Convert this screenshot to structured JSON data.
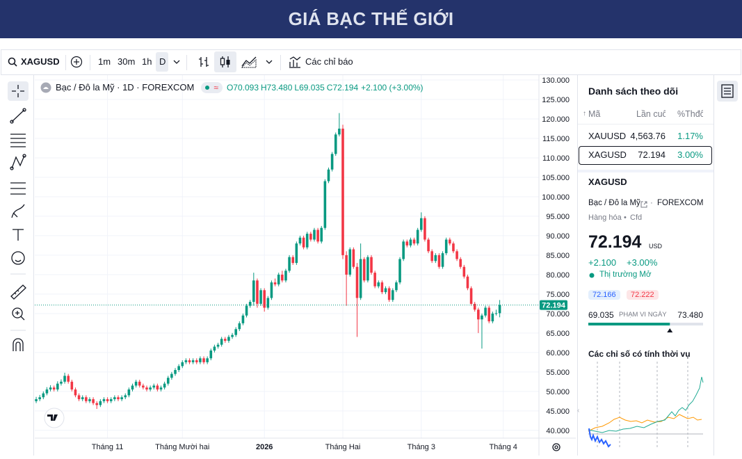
{
  "header": {
    "title": "GIÁ BẠC THẾ GIỚI"
  },
  "toolbar": {
    "symbol": "XAGUSD",
    "intervals": [
      "1m",
      "30m",
      "1h",
      "D"
    ],
    "indicators": "Các chỉ báo"
  },
  "chart_data": {
    "type": "candlestick",
    "title": "Bạc / Đô la Mỹ · 1D · FOREXCOM",
    "legend": {
      "open": "O70.093",
      "high": "H73.480",
      "low": "L69.035",
      "close": "C72.194",
      "change": "+2.100 (+3.00%)"
    },
    "up_color": "#089981",
    "down_color": "#f23645",
    "grid": true,
    "x": [
      0,
      1,
      2,
      3,
      4,
      5,
      6,
      7,
      8,
      9,
      10,
      11,
      12,
      13,
      14,
      15,
      16,
      17,
      18,
      19,
      20,
      21,
      22,
      23,
      24,
      25,
      26,
      27,
      28,
      29,
      30,
      31,
      32,
      33,
      34,
      35,
      36,
      37,
      38,
      39,
      40,
      41,
      42,
      43,
      44,
      45,
      46,
      47,
      48,
      49,
      50,
      51,
      52,
      53,
      54,
      55,
      56,
      57,
      58,
      59,
      60,
      61,
      62,
      63,
      64,
      65,
      66,
      67,
      68,
      69,
      70,
      71,
      72,
      73,
      74,
      75,
      76,
      77,
      78,
      79,
      80,
      81,
      82,
      83,
      84,
      85,
      86,
      87,
      88,
      89,
      90,
      91,
      92,
      93,
      94,
      95,
      96,
      97,
      98,
      99,
      100,
      101,
      102,
      103,
      104,
      105,
      106,
      107,
      108,
      109,
      110,
      111,
      112,
      113,
      114,
      115,
      116,
      117,
      118,
      119,
      120,
      121,
      122,
      123,
      124,
      125,
      126,
      127,
      128,
      129,
      130
    ],
    "open": [
      47.5,
      48.0,
      48.5,
      49.5,
      50.5,
      51.0,
      50.5,
      52.0,
      52.5,
      54.0,
      52.5,
      50.5,
      49.0,
      48.0,
      48.5,
      47.5,
      48.0,
      47.0,
      46.5,
      47.5,
      48.0,
      47.5,
      48.0,
      48.5,
      48.0,
      48.5,
      49.0,
      50.5,
      51.5,
      52.5,
      51.5,
      51.0,
      50.5,
      51.0,
      51.5,
      50.5,
      51.0,
      52.0,
      53.5,
      54.5,
      55.5,
      56.5,
      57.5,
      58.0,
      57.5,
      58.0,
      57.5,
      58.5,
      57.5,
      58.5,
      60.5,
      61.5,
      62.0,
      63.5,
      63.0,
      64.0,
      64.5,
      66.0,
      67.5,
      69.5,
      72.0,
      73.0,
      78.5,
      72.5,
      76.0,
      71.5,
      74.0,
      78.0,
      77.5,
      80.0,
      78.5,
      81.0,
      84.5,
      83.0,
      88.0,
      89.5,
      87.0,
      90.5,
      89.0,
      91.5,
      88.5,
      92.0,
      104.0,
      107.0,
      111.0,
      116.0,
      117.5,
      85.0,
      80.0,
      86.5,
      82.0,
      74.0,
      84.0,
      78.5,
      84.5,
      80.5,
      77.0,
      78.0,
      75.5,
      76.5,
      73.5,
      76.0,
      78.0,
      84.0,
      88.5,
      87.5,
      89.0,
      88.0,
      91.5,
      94.5,
      89.0,
      86.0,
      83.5,
      85.0,
      82.0,
      85.5,
      89.0,
      88.0,
      86.0,
      84.0,
      82.0,
      79.5,
      76.5,
      72.5,
      71.0,
      68.5,
      69.5,
      71.5,
      68.0,
      70.0,
      70.093
    ],
    "high": [
      48.6,
      49.1,
      50.0,
      51.1,
      51.6,
      51.5,
      52.6,
      53.1,
      54.8,
      54.5,
      53.0,
      51.0,
      49.5,
      49.0,
      49.0,
      48.5,
      48.5,
      47.5,
      48.0,
      48.5,
      48.5,
      48.5,
      49.0,
      49.0,
      49.0,
      49.5,
      51.0,
      52.0,
      53.0,
      53.0,
      52.0,
      51.5,
      51.5,
      52.0,
      52.0,
      51.5,
      52.5,
      54.0,
      55.0,
      56.0,
      57.0,
      58.0,
      58.5,
      58.5,
      58.5,
      58.5,
      59.0,
      59.0,
      59.0,
      61.0,
      62.0,
      62.5,
      64.0,
      64.0,
      64.5,
      65.0,
      66.5,
      68.0,
      70.0,
      72.5,
      73.5,
      80.5,
      79.0,
      76.5,
      76.5,
      74.5,
      78.5,
      79.0,
      80.5,
      81.0,
      81.5,
      85.0,
      85.0,
      88.5,
      90.0,
      90.0,
      91.0,
      91.0,
      92.0,
      92.0,
      92.5,
      104.5,
      107.5,
      111.5,
      116.5,
      121.5,
      118.5,
      86.0,
      87.0,
      87.0,
      83.0,
      88.0,
      84.5,
      85.0,
      85.0,
      81.0,
      78.5,
      78.5,
      77.0,
      77.0,
      76.5,
      78.5,
      84.5,
      89.0,
      89.0,
      89.5,
      89.5,
      92.0,
      96.0,
      95.0,
      89.5,
      86.5,
      85.5,
      85.5,
      86.0,
      89.5,
      89.5,
      88.5,
      86.5,
      84.5,
      82.5,
      80.0,
      77.0,
      73.0,
      71.5,
      70.0,
      72.0,
      72.0,
      70.5,
      71.0,
      73.48
    ],
    "low": [
      47.0,
      47.5,
      48.0,
      49.0,
      50.0,
      50.0,
      50.0,
      51.5,
      52.0,
      52.0,
      50.0,
      48.5,
      47.5,
      47.5,
      47.0,
      47.0,
      46.5,
      45.5,
      46.0,
      47.0,
      47.0,
      47.0,
      47.5,
      47.5,
      47.5,
      48.0,
      48.5,
      50.0,
      51.0,
      51.0,
      50.5,
      50.0,
      50.0,
      50.5,
      50.0,
      50.0,
      50.5,
      51.5,
      53.0,
      54.0,
      55.0,
      56.0,
      57.0,
      57.0,
      57.0,
      57.0,
      57.0,
      57.0,
      57.0,
      58.0,
      60.0,
      61.0,
      61.5,
      62.5,
      62.5,
      63.5,
      64.0,
      65.5,
      67.0,
      69.0,
      71.5,
      72.0,
      71.5,
      72.0,
      70.5,
      71.0,
      73.5,
      77.0,
      77.0,
      78.0,
      78.0,
      80.5,
      82.5,
      82.5,
      87.5,
      86.5,
      86.5,
      88.5,
      88.5,
      88.0,
      88.0,
      91.5,
      103.5,
      106.5,
      110.5,
      115.5,
      84.0,
      72.0,
      79.5,
      81.5,
      64.0,
      73.5,
      78.0,
      78.0,
      80.0,
      76.5,
      76.5,
      75.0,
      75.0,
      73.0,
      73.0,
      75.5,
      77.5,
      83.5,
      87.0,
      87.0,
      87.5,
      87.5,
      91.0,
      88.5,
      85.5,
      83.0,
      83.0,
      81.5,
      81.5,
      85.0,
      87.5,
      85.5,
      83.5,
      81.5,
      79.0,
      76.0,
      72.0,
      70.5,
      65.0,
      61.0,
      69.0,
      67.5,
      67.5,
      69.5,
      69.035
    ],
    "close": [
      48.0,
      48.5,
      49.5,
      50.5,
      51.0,
      50.5,
      52.0,
      52.5,
      54.0,
      52.5,
      50.5,
      49.0,
      48.0,
      48.5,
      47.5,
      48.0,
      47.0,
      46.5,
      47.5,
      48.0,
      47.5,
      48.0,
      48.5,
      48.0,
      48.5,
      49.0,
      50.5,
      51.5,
      52.5,
      51.5,
      51.0,
      50.5,
      51.0,
      51.5,
      50.5,
      51.0,
      52.0,
      53.5,
      54.5,
      55.5,
      56.5,
      57.5,
      58.0,
      57.5,
      58.0,
      57.5,
      58.5,
      57.5,
      58.5,
      60.5,
      61.5,
      62.0,
      63.5,
      63.0,
      64.0,
      64.5,
      66.0,
      67.5,
      69.5,
      72.0,
      73.0,
      78.5,
      72.5,
      76.0,
      71.5,
      74.0,
      78.0,
      77.5,
      80.0,
      78.5,
      81.0,
      84.5,
      83.0,
      88.0,
      89.5,
      87.0,
      90.5,
      89.0,
      91.5,
      88.5,
      92.0,
      104.0,
      107.0,
      111.0,
      116.0,
      117.5,
      85.0,
      80.0,
      86.5,
      82.0,
      74.0,
      84.0,
      78.5,
      84.5,
      80.5,
      77.0,
      78.0,
      75.5,
      76.5,
      73.5,
      76.0,
      78.0,
      84.0,
      88.5,
      87.5,
      89.0,
      88.0,
      91.5,
      94.5,
      89.0,
      86.0,
      83.5,
      85.0,
      82.0,
      85.5,
      89.0,
      88.0,
      86.0,
      84.0,
      82.0,
      79.5,
      76.5,
      72.5,
      71.0,
      68.5,
      69.5,
      71.5,
      68.0,
      70.0,
      70.1,
      72.194
    ],
    "xlim": [
      -0.4,
      141
    ],
    "xticks": [
      {
        "value": 20,
        "label": "Tháng 11"
      },
      {
        "value": 41,
        "label": "Tháng Mười hai"
      },
      {
        "value": 64,
        "label": "2026"
      },
      {
        "value": 86,
        "label": "Tháng Hai"
      },
      {
        "value": 108,
        "label": "Tháng 3"
      },
      {
        "value": 131,
        "label": "Tháng 4"
      }
    ],
    "ylim": [
      38,
      131.25
    ],
    "yticks": [
      {
        "value": 40,
        "label": "40.000"
      },
      {
        "value": 45,
        "label": "45.000"
      },
      {
        "value": 50,
        "label": "50.000"
      },
      {
        "value": 55,
        "label": "55.000"
      },
      {
        "value": 60,
        "label": "60.000"
      },
      {
        "value": 65,
        "label": "65.000"
      },
      {
        "value": 70,
        "label": "70.000"
      },
      {
        "value": 75,
        "label": "75.000"
      },
      {
        "value": 80,
        "label": "80.000"
      },
      {
        "value": 85,
        "label": "85.000"
      },
      {
        "value": 90,
        "label": "90.000"
      },
      {
        "value": 95,
        "label": "95.000"
      },
      {
        "value": 100,
        "label": "100.000"
      },
      {
        "value": 105,
        "label": "105.000"
      },
      {
        "value": 110,
        "label": "110.000"
      },
      {
        "value": 115,
        "label": "115.000"
      },
      {
        "value": 120,
        "label": "120.000"
      },
      {
        "value": 125,
        "label": "125.000"
      },
      {
        "value": 130,
        "label": "130.000"
      }
    ]
  },
  "watchlist": {
    "title": "Danh sách theo dõi",
    "columns": [
      "Mã",
      "Lần cuối",
      "%Thđổi"
    ],
    "rows": [
      [
        "XAUUSD",
        "4,563.76",
        "1.17%"
      ],
      [
        "XAGUSD",
        "72.194",
        "3.00%"
      ]
    ]
  },
  "details": {
    "symbol": "XAGUSD",
    "name": "Bạc / Đô la Mỹ",
    "exchange": "FOREXCOM",
    "category": "Hàng hóa",
    "kind": "Cfd",
    "price": 72.194,
    "currency": "USD",
    "change": "+2.100",
    "change_pct": "+3.00%",
    "status": "Thị trường Mở",
    "bid": "72.166",
    "ask": "72.222",
    "range_low": 69.035,
    "range_label": "PHẠM VI NGÀY",
    "range_high": {
      "value": 73.48,
      "label": "73.480"
    },
    "seasonal_title": "Các chỉ số có tính thời vụ"
  }
}
